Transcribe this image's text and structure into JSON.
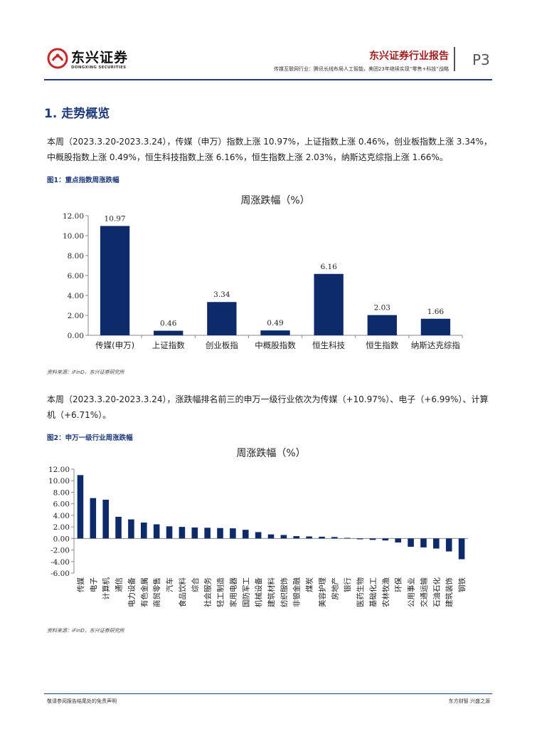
{
  "header": {
    "logo_cn": "东兴证券",
    "logo_en": "DONGXING SECURITIES",
    "report_brand": "东兴证券行业报告",
    "subtitle": "传媒互联网行业：腾讯长线布局人工智能，美团23年继续实现“零售+科技”战略",
    "page": "P3"
  },
  "section": {
    "title": "1. 走势概览",
    "para1": "本周（2023.3.20-2023.3.24），传媒（申万）指数上涨 10.97%，上证指数上涨 0.46%，创业板指数上涨 3.34%，中概股指数上涨 0.49%，恒生科技指数上涨 6.16%，恒生指数上涨 2.03%，纳斯达克综指上涨 1.66%。",
    "fig1_title": "图1：重点指数周涨跌幅",
    "source1": "资料来源：iFinD，东兴证券研究所",
    "para2": "本周（2023.3.20-2023.3.24），涨跌幅排名前三的申万一级行业依次为传媒（+10.97%）、电子（+6.99%）、计算机（+6.71%）。",
    "fig2_title": "图2：申万一级行业周涨跌幅",
    "source2": "资料来源：iFinD，东兴证券研究所"
  },
  "footer": {
    "left": "敬请参阅报告结尾处的免责声明",
    "right": "东方财智 兴盛之源"
  },
  "colors": {
    "bar": "#0d2a6b",
    "accent": "#1f3b7a",
    "brand_red": "#9b1f1f"
  },
  "chart_data": [
    {
      "type": "bar",
      "title": "周涨跌幅（%）",
      "categories": [
        "传媒(申万)",
        "上证指数",
        "创业板指",
        "中概股指数",
        "恒生科技",
        "恒生指数",
        "纳斯达克综指"
      ],
      "values": [
        10.97,
        0.46,
        3.34,
        0.49,
        6.16,
        2.03,
        1.66
      ],
      "data_labels": [
        "10.97",
        "0.46",
        "3.34",
        "0.49",
        "6.16",
        "2.03",
        "1.66"
      ],
      "yticks": [
        "0.00",
        "2.00",
        "4.00",
        "6.00",
        "8.00",
        "10.00",
        "12.00"
      ],
      "ylim": [
        0,
        12
      ],
      "grid": false
    },
    {
      "type": "bar",
      "title": "周涨跌幅（%）",
      "categories": [
        "传媒",
        "电子",
        "计算机",
        "通信",
        "电力设备",
        "有色金属",
        "商贸零售",
        "汽车",
        "食品饮料",
        "综合",
        "社会服务",
        "轻工制造",
        "家用电器",
        "国防军工",
        "机械设备",
        "建筑材料",
        "纺织服饰",
        "非银金融",
        "煤炭",
        "美容护理",
        "房地产",
        "银行",
        "医药生物",
        "基础化工",
        "农林牧渔",
        "环保",
        "公用事业",
        "交通运输",
        "石油石化",
        "建筑装饰",
        "钢铁"
      ],
      "values": [
        10.97,
        6.99,
        6.71,
        3.75,
        3.3,
        2.75,
        2.45,
        2.1,
        2.0,
        1.9,
        1.85,
        1.8,
        1.75,
        1.5,
        1.1,
        0.7,
        0.6,
        0.4,
        0.35,
        0.3,
        0.25,
        0.1,
        -0.15,
        -0.25,
        -0.35,
        -0.7,
        -1.45,
        -1.55,
        -1.75,
        -2.25,
        -3.6
      ],
      "yticks": [
        "-6.00",
        "-4.00",
        "-2.00",
        "0.00",
        "2.00",
        "4.00",
        "6.00",
        "8.00",
        "10.00",
        "12.00"
      ],
      "ylim": [
        -6,
        12
      ],
      "grid": false
    }
  ]
}
